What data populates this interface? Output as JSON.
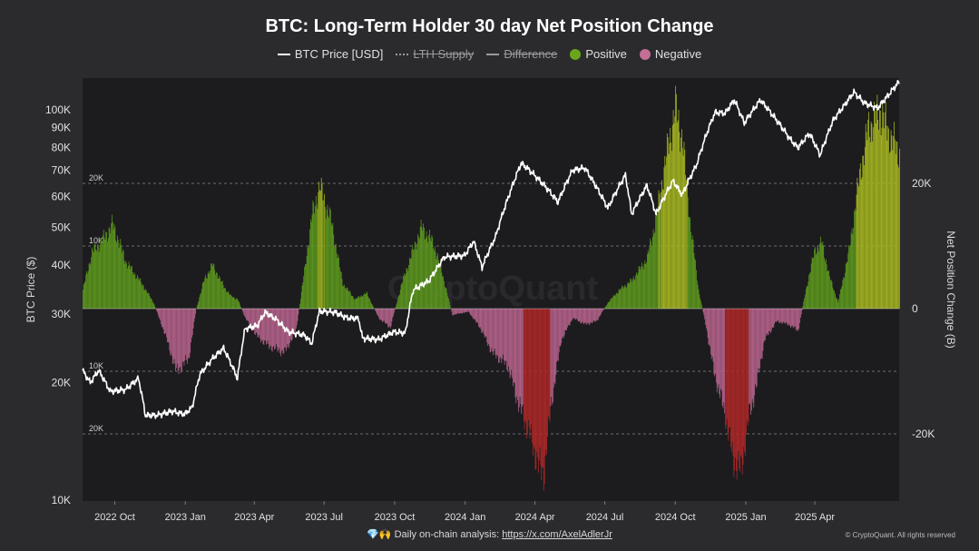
{
  "title": "BTC: Long-Term Holder 30 day Net Position Change",
  "legend": [
    {
      "label": "BTC Price [USD]",
      "kind": "line",
      "color": "#ffffff",
      "enabled": true
    },
    {
      "label": "LTH Supply",
      "kind": "dotted",
      "color": "#9a9a9a",
      "enabled": false
    },
    {
      "label": "Difference",
      "kind": "dash",
      "color": "#9a9a9a",
      "enabled": false
    },
    {
      "label": "Positive",
      "kind": "dot",
      "color": "#6aa51c",
      "enabled": true
    },
    {
      "label": "Negative",
      "kind": "dot",
      "color": "#c46f95",
      "enabled": true
    }
  ],
  "footer": {
    "icons": "💎🙌",
    "text": "Daily on-chain analysis:",
    "link": "https://x.com/AxelAdlerJr"
  },
  "copyright": "© CryptoQuant. All rights reserved",
  "watermark": "CryptoQuant",
  "colors": {
    "plot_bg": "#1c1c1f",
    "page_bg": "#2b2b2e",
    "positive": "#5e9a1e",
    "positive_bright": "#a8b820",
    "negative": "#b8648d",
    "negative_deep": "#b02828",
    "price": "#ffffff"
  },
  "chart_data": {
    "type": "bar",
    "title": "BTC: Long-Term Holder 30 day Net Position Change",
    "x_range": [
      "2022-08-20",
      "2025-07-20"
    ],
    "x_ticks": [
      {
        "label": "2022 Oct",
        "date": "2022-10-01"
      },
      {
        "label": "2023 Jan",
        "date": "2023-01-01"
      },
      {
        "label": "2023 Apr",
        "date": "2023-04-01"
      },
      {
        "label": "2023 Jul",
        "date": "2023-07-01"
      },
      {
        "label": "2023 Oct",
        "date": "2023-10-01"
      },
      {
        "label": "2024 Jan",
        "date": "2024-01-01"
      },
      {
        "label": "2024 Apr",
        "date": "2024-04-01"
      },
      {
        "label": "2024 Jul",
        "date": "2024-07-01"
      },
      {
        "label": "2024 Oct",
        "date": "2024-10-01"
      },
      {
        "label": "2025 Jan",
        "date": "2025-01-01"
      },
      {
        "label": "2025 Apr",
        "date": "2025-04-01"
      }
    ],
    "y_left": {
      "label": "BTC Price ($)",
      "scale": "log",
      "range": [
        10000,
        130000
      ],
      "ticks": [
        {
          "label": "100K",
          "value": 100000
        },
        {
          "label": "90K",
          "value": 90000
        },
        {
          "label": "80K",
          "value": 80000
        },
        {
          "label": "70K",
          "value": 70000
        },
        {
          "label": "60K",
          "value": 60000
        },
        {
          "label": "50K",
          "value": 50000
        },
        {
          "label": "40K",
          "value": 40000
        },
        {
          "label": "30K",
          "value": 30000
        },
        {
          "label": "20K",
          "value": 20000
        },
        {
          "label": "10K",
          "value": 10000
        }
      ]
    },
    "y_right": {
      "label": "Net Position Change (B)",
      "scale": "linear",
      "range": [
        -35000,
        32000
      ],
      "ticks": [
        {
          "label": "20K",
          "value": 20000
        },
        {
          "label": "0",
          "value": 0
        },
        {
          "label": "-20K",
          "value": -20000
        }
      ]
    },
    "reference_lines": [
      {
        "label": "20K",
        "value": 20000
      },
      {
        "label": "10K",
        "value": 10000
      },
      {
        "label": "10K",
        "value": -10000
      },
      {
        "label": "20K",
        "value": -20000
      }
    ],
    "net_position_keyframes": [
      [
        "2022-08-20",
        3000
      ],
      [
        "2022-09-01",
        9000
      ],
      [
        "2022-09-15",
        11000
      ],
      [
        "2022-09-28",
        13500
      ],
      [
        "2022-10-15",
        7500
      ],
      [
        "2022-11-05",
        4000
      ],
      [
        "2022-11-20",
        1000
      ],
      [
        "2022-12-05",
        -4000
      ],
      [
        "2022-12-20",
        -10000
      ],
      [
        "2023-01-05",
        -8000
      ],
      [
        "2023-01-15",
        0
      ],
      [
        "2023-01-25",
        4500
      ],
      [
        "2023-02-05",
        7000
      ],
      [
        "2023-02-20",
        3500
      ],
      [
        "2023-03-01",
        2000
      ],
      [
        "2023-03-10",
        1500
      ],
      [
        "2023-03-20",
        -1500
      ],
      [
        "2023-04-05",
        -4500
      ],
      [
        "2023-04-20",
        -6000
      ],
      [
        "2023-05-10",
        -7000
      ],
      [
        "2023-05-25",
        -3500
      ],
      [
        "2023-06-05",
        6000
      ],
      [
        "2023-06-15",
        15000
      ],
      [
        "2023-06-25",
        19500
      ],
      [
        "2023-07-10",
        14000
      ],
      [
        "2023-07-25",
        4000
      ],
      [
        "2023-08-10",
        1500
      ],
      [
        "2023-08-25",
        2500
      ],
      [
        "2023-09-10",
        -1500
      ],
      [
        "2023-09-25",
        -3000
      ],
      [
        "2023-10-10",
        4000
      ],
      [
        "2023-10-25",
        9500
      ],
      [
        "2023-11-05",
        13000
      ],
      [
        "2023-11-20",
        10500
      ],
      [
        "2023-12-01",
        6000
      ],
      [
        "2023-12-15",
        -1000
      ],
      [
        "2024-01-05",
        -500
      ],
      [
        "2024-01-20",
        -3000
      ],
      [
        "2024-02-05",
        -7000
      ],
      [
        "2024-02-25",
        -9000
      ],
      [
        "2024-03-10",
        -15000
      ],
      [
        "2024-03-25",
        -20000
      ],
      [
        "2024-04-05",
        -25000
      ],
      [
        "2024-04-12",
        -26500
      ],
      [
        "2024-04-22",
        -15000
      ],
      [
        "2024-05-05",
        -5000
      ],
      [
        "2024-05-20",
        -1500
      ],
      [
        "2024-06-05",
        -2500
      ],
      [
        "2024-06-20",
        -2000
      ],
      [
        "2024-07-05",
        1000
      ],
      [
        "2024-07-20",
        3000
      ],
      [
        "2024-08-05",
        4500
      ],
      [
        "2024-08-25",
        8000
      ],
      [
        "2024-09-05",
        14000
      ],
      [
        "2024-09-20",
        25000
      ],
      [
        "2024-10-01",
        32000
      ],
      [
        "2024-10-10",
        27000
      ],
      [
        "2024-10-20",
        14000
      ],
      [
        "2024-10-31",
        3000
      ],
      [
        "2024-11-10",
        -3000
      ],
      [
        "2024-11-20",
        -10000
      ],
      [
        "2024-12-05",
        -17000
      ],
      [
        "2024-12-15",
        -24000
      ],
      [
        "2024-12-25",
        -26000
      ],
      [
        "2025-01-05",
        -17000
      ],
      [
        "2025-01-15",
        -12000
      ],
      [
        "2025-01-25",
        -5000
      ],
      [
        "2025-02-10",
        -2000
      ],
      [
        "2025-02-25",
        -2500
      ],
      [
        "2025-03-10",
        -3500
      ],
      [
        "2025-03-20",
        3000
      ],
      [
        "2025-04-01",
        9500
      ],
      [
        "2025-04-10",
        10500
      ],
      [
        "2025-04-20",
        5000
      ],
      [
        "2025-05-01",
        1000
      ],
      [
        "2025-05-15",
        9000
      ],
      [
        "2025-05-30",
        22000
      ],
      [
        "2025-06-10",
        29000
      ],
      [
        "2025-06-25",
        31500
      ],
      [
        "2025-07-10",
        27000
      ],
      [
        "2025-07-20",
        25000
      ]
    ],
    "price_keyframes": [
      [
        "2022-08-20",
        21500
      ],
      [
        "2022-08-30",
        20000
      ],
      [
        "2022-09-10",
        21500
      ],
      [
        "2022-09-25",
        19000
      ],
      [
        "2022-10-15",
        19200
      ],
      [
        "2022-11-01",
        20500
      ],
      [
        "2022-11-10",
        16500
      ],
      [
        "2022-11-25",
        16500
      ],
      [
        "2022-12-15",
        16900
      ],
      [
        "2022-12-31",
        16600
      ],
      [
        "2023-01-10",
        17300
      ],
      [
        "2023-01-20",
        21000
      ],
      [
        "2023-02-05",
        23000
      ],
      [
        "2023-02-20",
        24500
      ],
      [
        "2023-03-10",
        20500
      ],
      [
        "2023-03-20",
        27500
      ],
      [
        "2023-04-05",
        28000
      ],
      [
        "2023-04-15",
        30300
      ],
      [
        "2023-04-30",
        29000
      ],
      [
        "2023-05-15",
        27000
      ],
      [
        "2023-06-05",
        26500
      ],
      [
        "2023-06-15",
        25200
      ],
      [
        "2023-06-25",
        30500
      ],
      [
        "2023-07-15",
        30300
      ],
      [
        "2023-07-31",
        29300
      ],
      [
        "2023-08-15",
        29200
      ],
      [
        "2023-08-20",
        26000
      ],
      [
        "2023-09-10",
        25800
      ],
      [
        "2023-09-30",
        27000
      ],
      [
        "2023-10-15",
        26800
      ],
      [
        "2023-10-25",
        34500
      ],
      [
        "2023-11-15",
        36500
      ],
      [
        "2023-12-05",
        42000
      ],
      [
        "2023-12-31",
        42300
      ],
      [
        "2024-01-12",
        46000
      ],
      [
        "2024-01-23",
        39500
      ],
      [
        "2024-02-10",
        47500
      ],
      [
        "2024-02-28",
        61000
      ],
      [
        "2024-03-14",
        73000
      ],
      [
        "2024-03-25",
        70000
      ],
      [
        "2024-04-15",
        63500
      ],
      [
        "2024-05-01",
        58000
      ],
      [
        "2024-05-20",
        70000
      ],
      [
        "2024-06-05",
        71000
      ],
      [
        "2024-06-25",
        61000
      ],
      [
        "2024-07-05",
        56000
      ],
      [
        "2024-07-28",
        68000
      ],
      [
        "2024-08-05",
        54000
      ],
      [
        "2024-08-25",
        64000
      ],
      [
        "2024-09-06",
        54000
      ],
      [
        "2024-09-28",
        65800
      ],
      [
        "2024-10-10",
        60500
      ],
      [
        "2024-10-29",
        72500
      ],
      [
        "2024-11-12",
        88000
      ],
      [
        "2024-11-22",
        98500
      ],
      [
        "2024-12-05",
        98000
      ],
      [
        "2024-12-17",
        106000
      ],
      [
        "2024-12-30",
        92500
      ],
      [
        "2025-01-20",
        106000
      ],
      [
        "2025-02-05",
        97000
      ],
      [
        "2025-02-28",
        84000
      ],
      [
        "2025-03-10",
        80000
      ],
      [
        "2025-03-25",
        87000
      ],
      [
        "2025-04-08",
        76500
      ],
      [
        "2025-04-25",
        94000
      ],
      [
        "2025-05-10",
        103000
      ],
      [
        "2025-05-22",
        111000
      ],
      [
        "2025-06-05",
        104000
      ],
      [
        "2025-06-22",
        101000
      ],
      [
        "2025-07-05",
        108500
      ],
      [
        "2025-07-20",
        118000
      ]
    ]
  }
}
